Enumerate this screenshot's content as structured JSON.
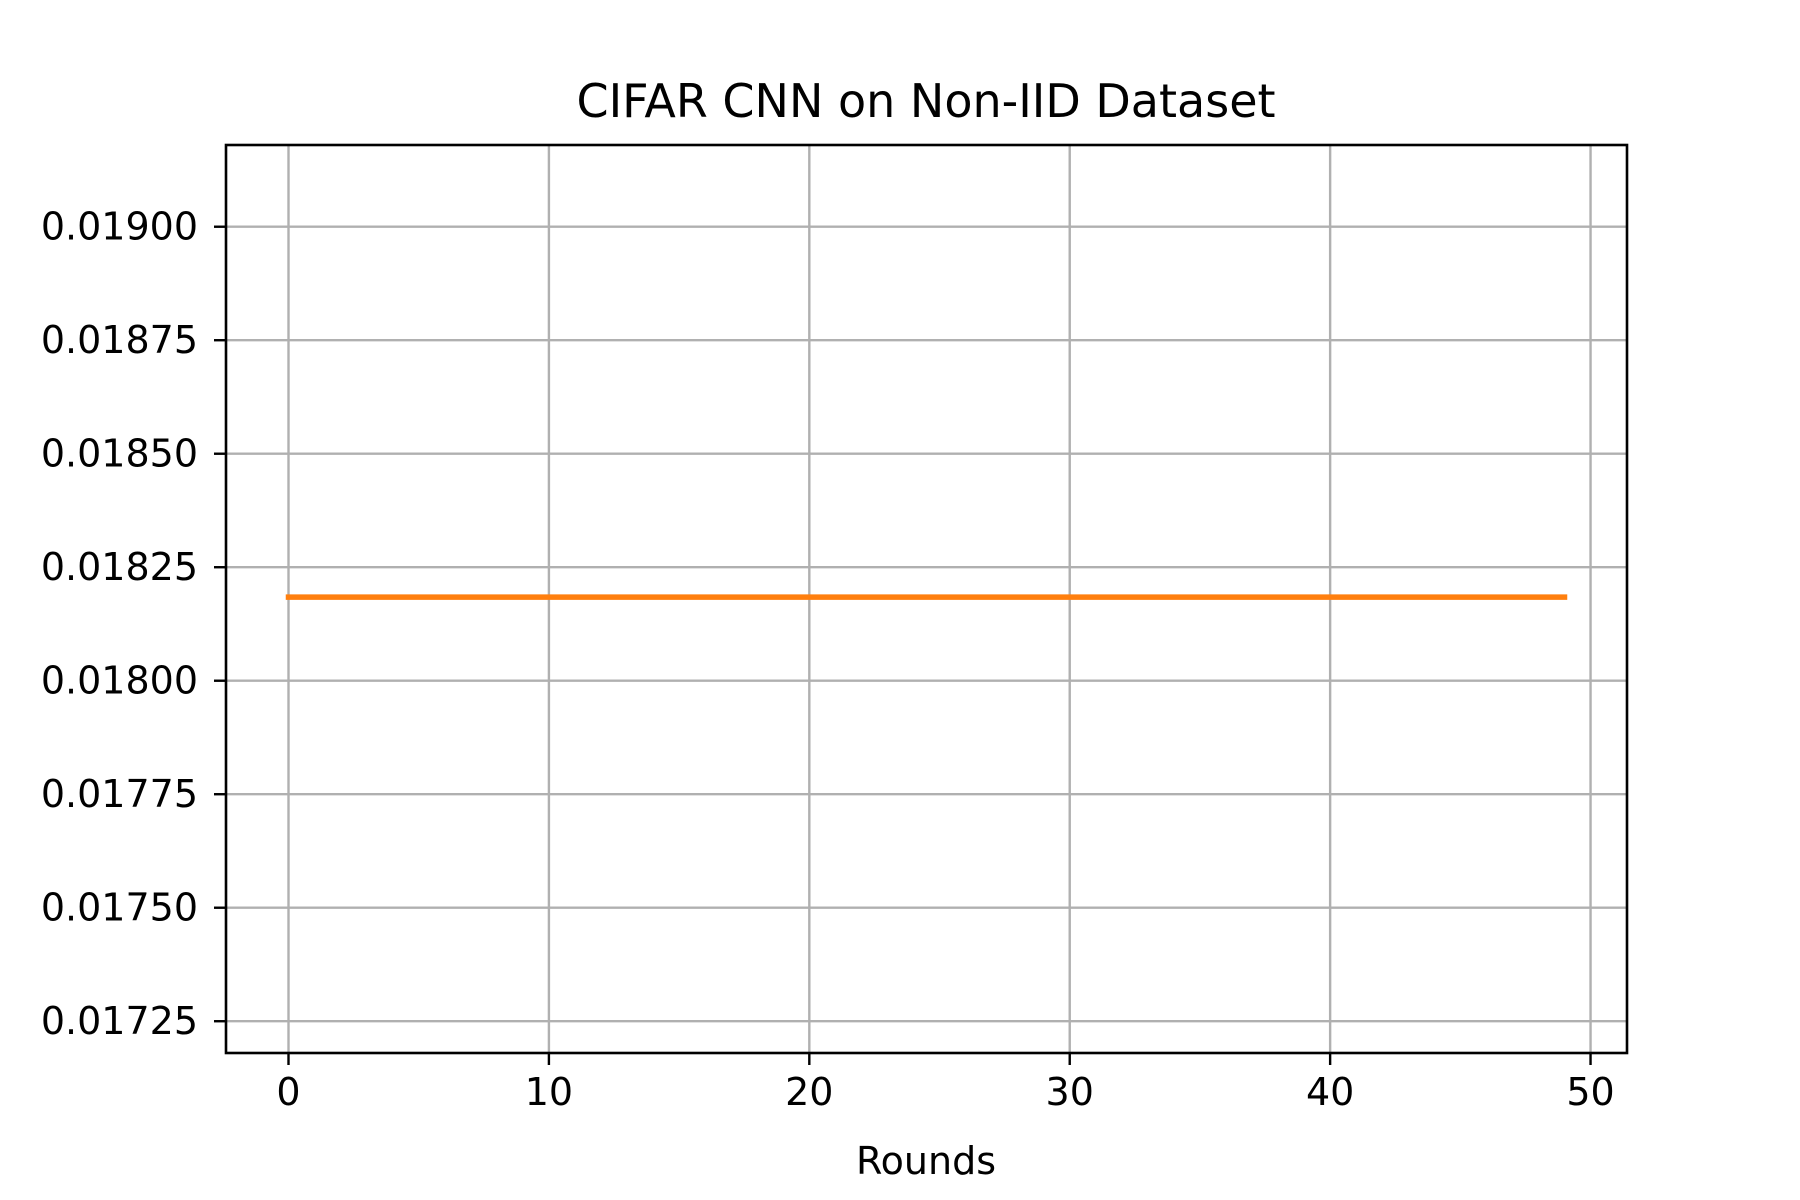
{
  "chart_data": {
    "type": "line",
    "title": "CIFAR CNN on Non-IID Dataset",
    "xlabel": "Rounds",
    "ylabel": "",
    "xlim": [
      -2.4,
      51.4
    ],
    "ylim": [
      0.01718,
      0.01918
    ],
    "xticks": [
      0,
      10,
      20,
      30,
      40,
      50
    ],
    "xtick_labels": [
      "0",
      "10",
      "20",
      "30",
      "40",
      "50"
    ],
    "yticks": [
      0.01725,
      0.0175,
      0.01775,
      0.018,
      0.01825,
      0.0185,
      0.01875,
      0.019
    ],
    "ytick_labels": [
      "0.01725",
      "0.01750",
      "0.01775",
      "0.01800",
      "0.01825",
      "0.01850",
      "0.01875",
      "0.01900"
    ],
    "grid": true,
    "legend": "none",
    "series": [
      {
        "color": "#ff7f0e",
        "x_start": 0,
        "x_end": 49,
        "x_step": 1,
        "y_constant": 0.018184
      }
    ]
  }
}
